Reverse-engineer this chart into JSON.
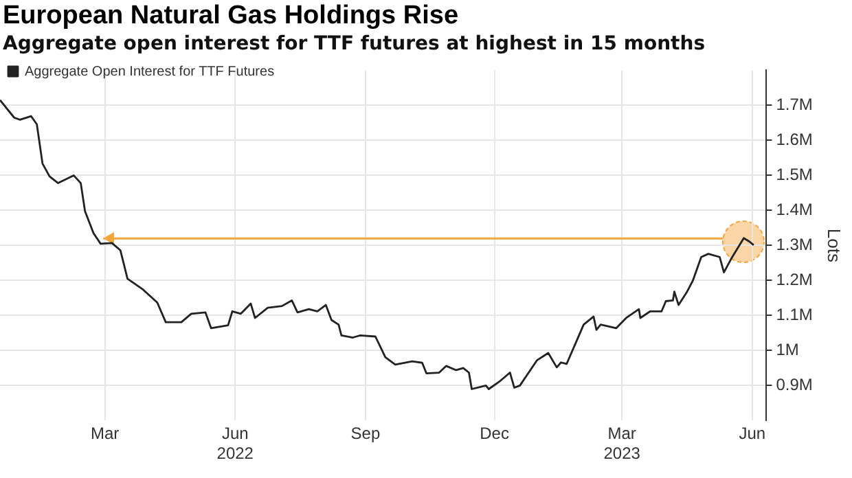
{
  "chart_data": {
    "type": "line",
    "title": "European Natural Gas Holdings Rise",
    "subtitle": "Aggregate open interest for TTF futures at highest in 15 months",
    "ylabel": "Lots",
    "x": [
      "2021-12-17",
      "2021-12-27",
      "2021-12-31",
      "2022-01-08",
      "2022-01-12",
      "2022-01-16",
      "2022-01-21",
      "2022-01-27",
      "2022-02-07",
      "2022-02-12",
      "2022-02-15",
      "2022-02-21",
      "2022-02-26",
      "2022-03-06",
      "2022-03-12",
      "2022-03-17",
      "2022-03-28",
      "2022-04-07",
      "2022-04-13",
      "2022-04-24",
      "2022-05-01",
      "2022-05-11",
      "2022-05-15",
      "2022-05-27",
      "2022-05-30",
      "2022-06-05",
      "2022-06-12",
      "2022-06-15",
      "2022-06-24",
      "2022-07-04",
      "2022-07-11",
      "2022-07-15",
      "2022-07-23",
      "2022-07-29",
      "2022-08-04",
      "2022-08-08",
      "2022-08-13",
      "2022-08-15",
      "2022-08-23",
      "2022-08-28",
      "2022-09-08",
      "2022-09-15",
      "2022-09-22",
      "2022-10-04",
      "2022-10-11",
      "2022-10-14",
      "2022-10-23",
      "2022-10-28",
      "2022-11-04",
      "2022-11-09",
      "2022-11-13",
      "2022-11-15",
      "2022-11-25",
      "2022-11-27",
      "2022-12-05",
      "2022-12-12",
      "2022-12-15",
      "2022-12-19",
      "2022-12-31",
      "2023-01-08",
      "2023-01-14",
      "2023-01-17",
      "2023-01-21",
      "2023-02-02",
      "2023-02-09",
      "2023-02-11",
      "2023-02-14",
      "2023-02-25",
      "2023-03-04",
      "2023-03-13",
      "2023-03-14",
      "2023-03-21",
      "2023-03-29",
      "2023-04-01",
      "2023-04-06",
      "2023-04-07",
      "2023-04-10",
      "2023-04-16",
      "2023-04-20",
      "2023-04-26",
      "2023-05-01",
      "2023-05-09",
      "2023-05-12",
      "2023-05-17",
      "2023-05-26",
      "2023-05-30",
      "2023-06-02"
    ],
    "series": [
      {
        "name": "Aggregate Open Interest for TTF Futures",
        "color": "#222222",
        "values": [
          1.715,
          1.665,
          1.659,
          1.669,
          1.646,
          1.534,
          1.497,
          1.478,
          1.5,
          1.478,
          1.398,
          1.335,
          1.305,
          1.307,
          1.286,
          1.205,
          1.174,
          1.137,
          1.081,
          1.081,
          1.105,
          1.109,
          1.064,
          1.072,
          1.112,
          1.105,
          1.134,
          1.093,
          1.122,
          1.127,
          1.143,
          1.109,
          1.118,
          1.112,
          1.13,
          1.087,
          1.074,
          1.043,
          1.037,
          1.043,
          1.04,
          0.981,
          0.96,
          0.969,
          0.965,
          0.935,
          0.937,
          0.956,
          0.944,
          0.95,
          0.937,
          0.89,
          0.9,
          0.89,
          0.913,
          0.937,
          0.894,
          0.9,
          0.972,
          0.993,
          0.952,
          0.966,
          0.962,
          1.074,
          1.097,
          1.059,
          1.074,
          1.064,
          1.093,
          1.118,
          1.093,
          1.112,
          1.112,
          1.141,
          1.143,
          1.168,
          1.13,
          1.168,
          1.199,
          1.267,
          1.276,
          1.267,
          1.223,
          1.261,
          1.321,
          1.311,
          1.301
        ]
      }
    ],
    "xlim": [
      "2021-12-17",
      "2023-06-11"
    ],
    "xticks": [
      {
        "value": "2022-03-01",
        "label": "Mar"
      },
      {
        "value": "2022-06-01",
        "label": "Jun\n2022"
      },
      {
        "value": "2022-09-01",
        "label": "Sep"
      },
      {
        "value": "2022-12-01",
        "label": "Dec"
      },
      {
        "value": "2023-03-01",
        "label": "Mar\n2023"
      },
      {
        "value": "2023-06-01",
        "label": "Jun"
      }
    ],
    "ylim": [
      0.8,
      1.8
    ],
    "yticks": [
      {
        "value": 0.9,
        "label": "0.9M"
      },
      {
        "value": 1,
        "label": "1M"
      },
      {
        "value": 1.1,
        "label": "1.1M"
      },
      {
        "value": 1.2,
        "label": "1.2M"
      },
      {
        "value": 1.3,
        "label": "1.3M"
      },
      {
        "value": 1.4,
        "label": "1.4M"
      },
      {
        "value": 1.5,
        "label": "1.5M"
      },
      {
        "value": 1.6,
        "label": "1.6M"
      },
      {
        "value": 1.7,
        "label": "1.7M"
      }
    ],
    "ref_lines": [
      {
        "axis": "y",
        "value": 1.32,
        "color": "#f5a53a"
      }
    ],
    "grid": true,
    "legend": "top left",
    "marker": "none",
    "line_style": "solid"
  }
}
